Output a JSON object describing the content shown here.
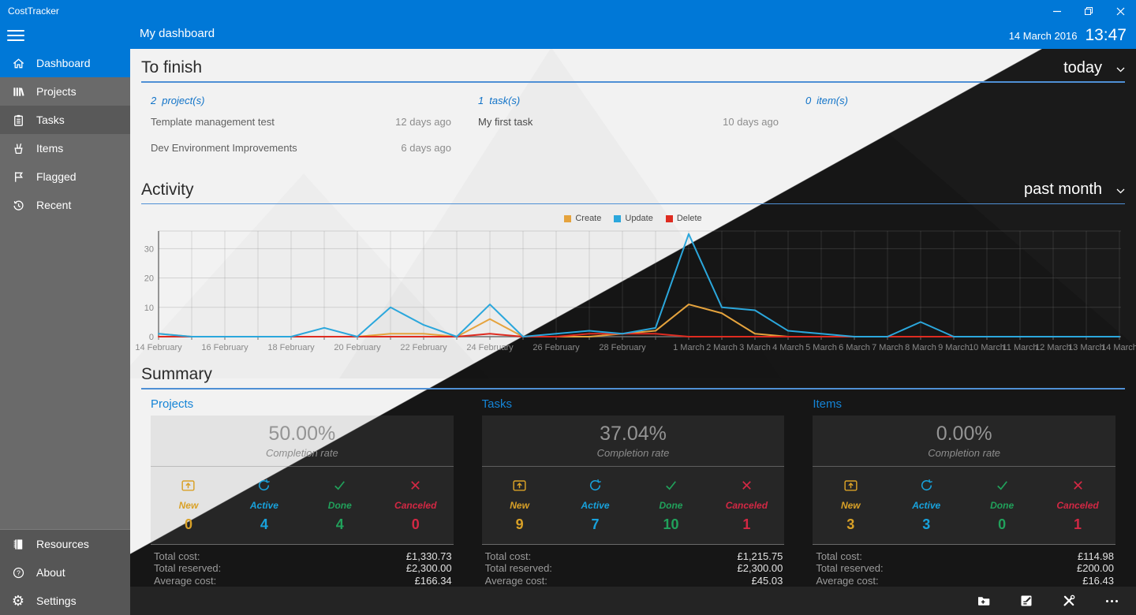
{
  "titlebar": {
    "app_title": "CostTracker"
  },
  "header": {
    "page_title": "My dashboard",
    "date": "14 March 2016",
    "time": "13:47"
  },
  "colors": {
    "accent": "#0078D7",
    "light_bg": "#F2F2F2",
    "dark_bg": "#161616",
    "link_blue": "#1173C8",
    "section_underline": "#4F90D5"
  },
  "sidebar": {
    "items": [
      {
        "label": "Dashboard",
        "icon": "home-icon",
        "selected": true
      },
      {
        "label": "Projects",
        "icon": "books-icon"
      },
      {
        "label": "Tasks",
        "icon": "clipboard-icon"
      },
      {
        "label": "Items",
        "icon": "pen-cup-icon"
      },
      {
        "label": "Flagged",
        "icon": "flag-icon"
      },
      {
        "label": "Recent",
        "icon": "history-icon"
      }
    ],
    "bottom_items": [
      {
        "label": "Resources",
        "icon": "notebook-icon"
      },
      {
        "label": "About",
        "icon": "help-icon"
      },
      {
        "label": "Settings",
        "icon": "gear-icon"
      }
    ]
  },
  "to_finish": {
    "title": "To finish",
    "filter": "today",
    "groups": [
      {
        "count": "2",
        "label": "project(s)",
        "rows": [
          {
            "title": "Template management test",
            "age": "12 days ago"
          },
          {
            "title": "Dev Environment Improvements",
            "age": "6 days ago"
          }
        ]
      },
      {
        "count": "1",
        "label": "task(s)",
        "rows": [
          {
            "title": "My first task",
            "age": "10 days ago"
          }
        ]
      },
      {
        "count": "0",
        "label": "item(s)",
        "rows": []
      }
    ]
  },
  "activity": {
    "title": "Activity",
    "filter": "past month"
  },
  "chart_data": {
    "type": "line",
    "title": "Activity",
    "x": [
      "14 February",
      "15 February",
      "16 February",
      "17 February",
      "18 February",
      "19 February",
      "20 February",
      "21 February",
      "22 February",
      "23 February",
      "24 February",
      "25 February",
      "26 February",
      "27 February",
      "28 February",
      "29 February",
      "1 March",
      "2 March",
      "3 March",
      "4 March",
      "5 March",
      "6 March",
      "7 March",
      "8 March",
      "9 March",
      "10 March",
      "11 March",
      "12 March",
      "13 March",
      "14 March"
    ],
    "x_tick_indices": [
      0,
      2,
      4,
      6,
      8,
      10,
      12,
      14,
      16,
      17,
      18,
      19,
      20,
      21,
      22,
      23,
      24,
      25,
      26,
      27,
      28,
      29
    ],
    "series": [
      {
        "name": "Create",
        "color": "#E5A33D",
        "values": [
          1,
          0,
          0,
          0,
          0,
          0,
          0,
          1,
          1,
          0,
          6,
          0,
          0,
          0,
          1,
          2,
          11,
          8,
          1,
          0,
          0,
          0,
          0,
          0,
          0,
          0,
          0,
          0,
          0,
          0
        ]
      },
      {
        "name": "Update",
        "color": "#2BA7DC",
        "values": [
          1,
          0,
          0,
          0,
          0,
          3,
          0,
          10,
          4,
          0,
          11,
          0,
          1,
          2,
          1,
          3,
          35,
          10,
          9,
          2,
          1,
          0,
          0,
          5,
          0,
          0,
          0,
          0,
          0,
          0
        ]
      },
      {
        "name": "Delete",
        "color": "#DE2B20",
        "values": [
          0,
          0,
          0,
          0,
          0,
          0,
          0,
          0,
          0,
          0,
          1,
          0,
          0,
          1,
          1,
          1,
          0,
          0,
          0,
          0,
          0,
          0,
          0,
          0,
          0,
          0,
          0,
          0,
          0,
          0
        ]
      }
    ],
    "ylim": [
      0,
      36
    ],
    "yticks": [
      0,
      10,
      20,
      30
    ],
    "grid": true,
    "legend_position": "top-center"
  },
  "summary": {
    "title": "Summary",
    "stat_colors": {
      "new": "#D9A127",
      "active": "#18A2DC",
      "done": "#21A15B",
      "canceled": "#D22844"
    },
    "cards": [
      {
        "title": "Projects",
        "completion": "50.00%",
        "completion_label": "Completion rate",
        "stats": [
          {
            "label": "New",
            "value": "0"
          },
          {
            "label": "Active",
            "value": "4"
          },
          {
            "label": "Done",
            "value": "4"
          },
          {
            "label": "Canceled",
            "value": "0"
          }
        ],
        "costs": [
          {
            "label": "Total cost:",
            "value": "£1,330.73"
          },
          {
            "label": "Total reserved:",
            "value": "£2,300.00"
          },
          {
            "label": "Average cost:",
            "value": "£166.34"
          }
        ]
      },
      {
        "title": "Tasks",
        "completion": "37.04%",
        "completion_label": "Completion rate",
        "stats": [
          {
            "label": "New",
            "value": "9"
          },
          {
            "label": "Active",
            "value": "7"
          },
          {
            "label": "Done",
            "value": "10"
          },
          {
            "label": "Canceled",
            "value": "1"
          }
        ],
        "costs": [
          {
            "label": "Total cost:",
            "value": "£1,215.75"
          },
          {
            "label": "Total reserved:",
            "value": "£2,300.00"
          },
          {
            "label": "Average cost:",
            "value": "£45.03"
          }
        ]
      },
      {
        "title": "Items",
        "completion": "0.00%",
        "completion_label": "Completion rate",
        "stats": [
          {
            "label": "New",
            "value": "3"
          },
          {
            "label": "Active",
            "value": "3"
          },
          {
            "label": "Done",
            "value": "0"
          },
          {
            "label": "Canceled",
            "value": "1"
          }
        ],
        "costs": [
          {
            "label": "Total cost:",
            "value": "£114.98"
          },
          {
            "label": "Total reserved:",
            "value": "£200.00"
          },
          {
            "label": "Average cost:",
            "value": "£16.43"
          }
        ]
      }
    ]
  },
  "appbar": {
    "icons": [
      "add-folder-icon",
      "edit-note-icon",
      "tools-icon",
      "more-icon"
    ]
  }
}
